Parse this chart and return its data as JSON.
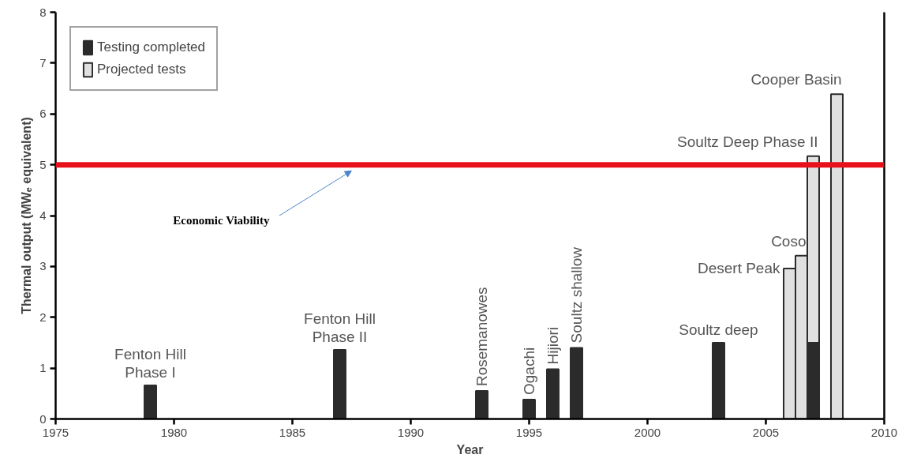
{
  "chart_data": {
    "type": "bar",
    "xlabel": "Year",
    "ylabel": "Thermal output (MWₑ equivalent)",
    "xlim": [
      1975,
      2010
    ],
    "xticks": [
      1975,
      1980,
      1985,
      1990,
      1995,
      2000,
      2005,
      2010
    ],
    "ylim": [
      0,
      8
    ],
    "yticks": [
      0,
      1,
      2,
      3,
      4,
      5,
      6,
      7,
      8
    ],
    "grid": false,
    "legend": "top left",
    "series": [
      {
        "name": "Projected tests",
        "color": "#e0e0e0",
        "x": [
          2006,
          2006.5,
          2007,
          2008
        ],
        "values": [
          2.96,
          3.21,
          5.17,
          6.39
        ]
      },
      {
        "name": "Testing completed",
        "color": "#2b2b2b",
        "x": [
          1979,
          1987,
          1993,
          1995,
          1996,
          1997,
          2003,
          2007
        ],
        "values": [
          0.66,
          1.36,
          0.55,
          0.38,
          0.98,
          1.4,
          1.5,
          1.5
        ]
      }
    ],
    "ref_lines": [
      {
        "axis": "y",
        "value": 5,
        "color": "#e8101a",
        "label": "Economic Viability"
      }
    ],
    "annotations": [
      {
        "text": "Fenton Hill\nPhase I",
        "x": 1979,
        "y": 0.66
      },
      {
        "text": "Fenton Hill\nPhase II",
        "x": 1987,
        "y": 1.36
      },
      {
        "text": "Rosemanowes",
        "x": 1993,
        "y": 0.55
      },
      {
        "text": "Ogachi",
        "x": 1995,
        "y": 0.38
      },
      {
        "text": "Hijiori",
        "x": 1996,
        "y": 0.98
      },
      {
        "text": "Soultz shallow",
        "x": 1997,
        "y": 1.4
      },
      {
        "text": "Soultz deep",
        "x": 2003,
        "y": 1.5
      },
      {
        "text": "Desert Peak",
        "x": 2006,
        "y": 2.96
      },
      {
        "text": "Coso",
        "x": 2006.5,
        "y": 3.21
      },
      {
        "text": "Soultz Deep Phase II",
        "x": 2007,
        "y": 5.17
      },
      {
        "text": "Cooper Basin",
        "x": 2008,
        "y": 6.39
      }
    ]
  }
}
